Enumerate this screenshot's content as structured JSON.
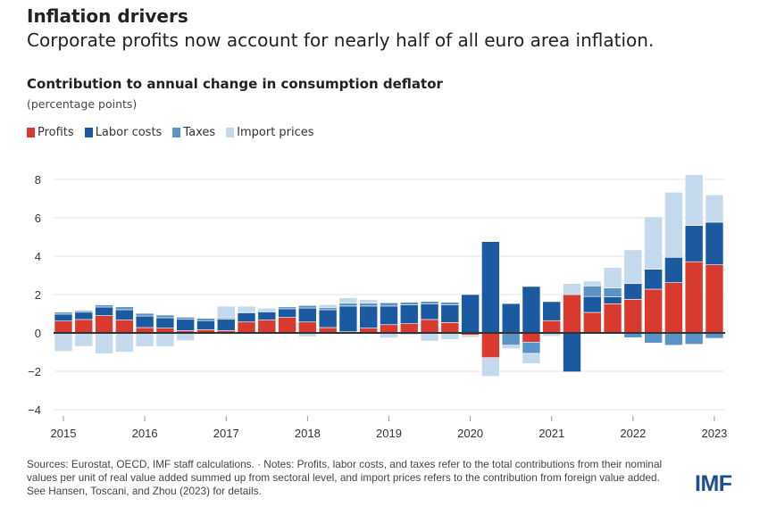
{
  "header": {
    "title": "Inflation drivers",
    "subtitle": "Corporate profits now account for nearly half of all euro area inflation."
  },
  "footer": {
    "notes": "Sources: Eurostat, OECD, IMF staff calculations. · Notes: Profits, labor costs, and taxes refer to the total contributions from their nominal values per unit of real value added summed up from sectoral level, and import prices refers to the contribution from foreign value added. See Hansen, Toscani, and Zhou (2023) for details.",
    "logo": "IMF"
  },
  "chart_data": {
    "type": "bar",
    "stacked": true,
    "title": "Contribution to annual change in consumption deflator",
    "ylabel": "(percentage points)",
    "ylim": [
      -4,
      8.5
    ],
    "yticks": [
      -4,
      -2,
      0,
      2,
      4,
      6,
      8
    ],
    "ytick_labels": [
      "−4",
      "−2",
      "0",
      "2",
      "4",
      "6",
      "8"
    ],
    "xtick_labels": [
      "2015",
      "2016",
      "2017",
      "2018",
      "2019",
      "2020",
      "2021",
      "2022",
      "2023"
    ],
    "grid": true,
    "legend_position": "top-left",
    "categories": [
      "2015Q1",
      "2015Q2",
      "2015Q3",
      "2015Q4",
      "2016Q1",
      "2016Q2",
      "2016Q3",
      "2016Q4",
      "2017Q1",
      "2017Q2",
      "2017Q3",
      "2017Q4",
      "2018Q1",
      "2018Q2",
      "2018Q3",
      "2018Q4",
      "2019Q1",
      "2019Q2",
      "2019Q3",
      "2019Q4",
      "2020Q1",
      "2020Q2",
      "2020Q3",
      "2020Q4",
      "2021Q1",
      "2021Q2",
      "2021Q3",
      "2021Q4",
      "2022Q1",
      "2022Q2",
      "2022Q3",
      "2022Q4",
      "2023Q1"
    ],
    "series": [
      {
        "name": "Profits",
        "color": "#d93a2f",
        "values": [
          0.62,
          0.7,
          0.9,
          0.67,
          0.28,
          0.25,
          0.12,
          0.17,
          0.12,
          0.57,
          0.67,
          0.81,
          0.57,
          0.28,
          0.06,
          0.25,
          0.43,
          0.48,
          0.7,
          0.54,
          -0.12,
          -1.29,
          0.0,
          -0.48,
          0.64,
          2.0,
          1.07,
          1.52,
          1.75,
          2.28,
          2.62,
          3.71,
          3.55
        ]
      },
      {
        "name": "Labor costs",
        "color": "#1b5aa1",
        "values": [
          0.36,
          0.38,
          0.45,
          0.54,
          0.6,
          0.54,
          0.59,
          0.47,
          0.59,
          0.47,
          0.42,
          0.45,
          0.73,
          0.93,
          1.34,
          1.15,
          0.97,
          0.99,
          0.82,
          0.93,
          2.0,
          4.76,
          1.53,
          2.42,
          0.99,
          -2.03,
          0.83,
          0.36,
          0.82,
          1.04,
          1.32,
          1.89,
          2.22
        ]
      },
      {
        "name": "Taxes",
        "color": "#5b93c7",
        "values": [
          0.1,
          0.08,
          0.11,
          0.15,
          0.14,
          0.14,
          0.11,
          0.12,
          0.08,
          0.06,
          0.06,
          0.1,
          0.13,
          0.12,
          0.15,
          0.15,
          0.17,
          0.13,
          0.12,
          0.13,
          0.0,
          0.0,
          -0.64,
          -0.59,
          0.0,
          0.0,
          0.55,
          0.46,
          -0.25,
          -0.53,
          -0.64,
          -0.59,
          -0.28
        ]
      },
      {
        "name": "Import prices",
        "color": "#c4d9ec",
        "values": [
          -0.96,
          -0.7,
          -1.08,
          -1.0,
          -0.71,
          -0.71,
          -0.4,
          0.0,
          0.6,
          0.29,
          0.14,
          0.0,
          -0.19,
          0.14,
          0.28,
          0.19,
          -0.26,
          -0.1,
          -0.42,
          -0.34,
          -0.1,
          -0.97,
          -0.18,
          -0.53,
          -0.17,
          0.57,
          0.25,
          1.07,
          1.76,
          2.73,
          3.39,
          2.65,
          1.42
        ]
      }
    ]
  }
}
